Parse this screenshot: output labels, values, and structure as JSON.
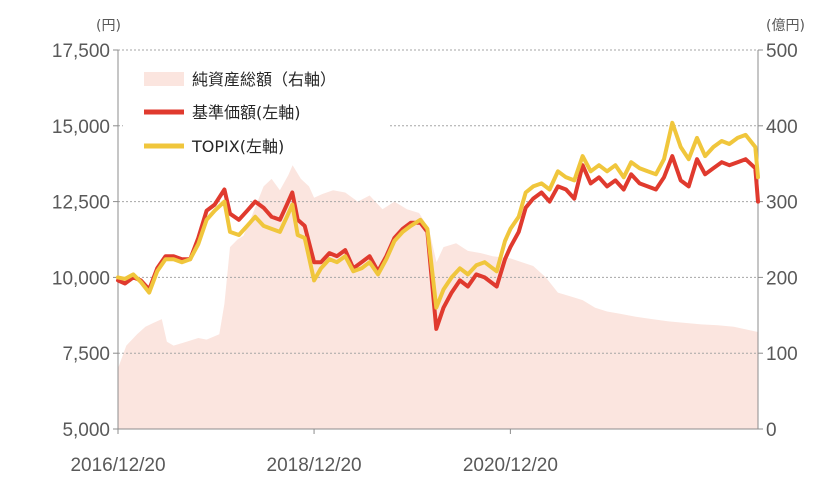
{
  "chart_data": {
    "type": "line",
    "left_axis": {
      "unit_label": "(円)",
      "ylim": [
        5000,
        17500
      ],
      "ticks": [
        5000,
        7500,
        10000,
        12500,
        15000,
        17500
      ],
      "tick_labels": [
        "5,000",
        "7,500",
        "10,000",
        "12,500",
        "15,000",
        "17,500"
      ]
    },
    "right_axis": {
      "unit_label": "(億円)",
      "ylim": [
        0,
        500
      ],
      "ticks": [
        0,
        100,
        200,
        300,
        400,
        500
      ],
      "tick_labels": [
        "0",
        "100",
        "200",
        "300",
        "400",
        "500"
      ]
    },
    "x_axis": {
      "start": "2016-12-20",
      "end": "2023-06-30",
      "tick_labels": [
        "2016/12/20",
        "2018/12/20",
        "2020/12/20"
      ],
      "tick_dates": [
        "2016-12-20",
        "2018-12-20",
        "2020-12-20"
      ]
    },
    "grid": true,
    "legend_position": "top-left",
    "series": [
      {
        "name": "純資産総額（右軸）",
        "type": "area",
        "axis": "right",
        "color": "#fbe5df",
        "points": [
          [
            "2016-12-20",
            80
          ],
          [
            "2017-01-20",
            110
          ],
          [
            "2017-03-01",
            125
          ],
          [
            "2017-04-01",
            135
          ],
          [
            "2017-05-01",
            140
          ],
          [
            "2017-06-01",
            145
          ],
          [
            "2017-06-20",
            115
          ],
          [
            "2017-07-15",
            110
          ],
          [
            "2017-09-01",
            115
          ],
          [
            "2017-10-15",
            120
          ],
          [
            "2017-11-15",
            118
          ],
          [
            "2018-01-01",
            125
          ],
          [
            "2018-01-20",
            165
          ],
          [
            "2018-02-10",
            240
          ],
          [
            "2018-03-10",
            250
          ],
          [
            "2018-04-01",
            255
          ],
          [
            "2018-05-01",
            280
          ],
          [
            "2018-06-15",
            320
          ],
          [
            "2018-07-15",
            330
          ],
          [
            "2018-08-15",
            315
          ],
          [
            "2018-09-15",
            335
          ],
          [
            "2018-10-01",
            348
          ],
          [
            "2018-11-01",
            330
          ],
          [
            "2018-12-01",
            320
          ],
          [
            "2018-12-20",
            305
          ],
          [
            "2019-01-20",
            310
          ],
          [
            "2019-03-01",
            315
          ],
          [
            "2019-04-15",
            312
          ],
          [
            "2019-06-01",
            300
          ],
          [
            "2019-07-15",
            308
          ],
          [
            "2019-09-01",
            290
          ],
          [
            "2019-10-15",
            300
          ],
          [
            "2019-12-01",
            290
          ],
          [
            "2020-01-15",
            285
          ],
          [
            "2020-02-20",
            265
          ],
          [
            "2020-03-20",
            220
          ],
          [
            "2020-04-15",
            240
          ],
          [
            "2020-06-01",
            245
          ],
          [
            "2020-07-15",
            235
          ],
          [
            "2020-09-01",
            232
          ],
          [
            "2020-10-15",
            228
          ],
          [
            "2020-12-20",
            225
          ],
          [
            "2021-02-01",
            220
          ],
          [
            "2021-03-15",
            215
          ],
          [
            "2021-05-01",
            200
          ],
          [
            "2021-06-15",
            180
          ],
          [
            "2021-08-01",
            175
          ],
          [
            "2021-09-15",
            170
          ],
          [
            "2021-11-01",
            160
          ],
          [
            "2021-12-15",
            155
          ],
          [
            "2022-02-01",
            152
          ],
          [
            "2022-04-01",
            148
          ],
          [
            "2022-06-01",
            145
          ],
          [
            "2022-08-01",
            142
          ],
          [
            "2022-10-01",
            140
          ],
          [
            "2022-12-01",
            138
          ],
          [
            "2023-02-01",
            137
          ],
          [
            "2023-04-01",
            135
          ],
          [
            "2023-06-30",
            128
          ]
        ]
      },
      {
        "name": "基準価額(左軸)",
        "type": "line",
        "axis": "left",
        "color": "#e03a2e",
        "points": [
          [
            "2016-12-20",
            9900
          ],
          [
            "2017-01-15",
            9800
          ],
          [
            "2017-02-15",
            10000
          ],
          [
            "2017-03-15",
            9900
          ],
          [
            "2017-04-15",
            9600
          ],
          [
            "2017-05-15",
            10300
          ],
          [
            "2017-06-15",
            10700
          ],
          [
            "2017-07-15",
            10700
          ],
          [
            "2017-08-15",
            10600
          ],
          [
            "2017-09-15",
            10600
          ],
          [
            "2017-10-15",
            11300
          ],
          [
            "2017-11-15",
            12200
          ],
          [
            "2017-12-15",
            12400
          ],
          [
            "2018-01-20",
            12900
          ],
          [
            "2018-02-10",
            12100
          ],
          [
            "2018-03-15",
            11900
          ],
          [
            "2018-04-15",
            12200
          ],
          [
            "2018-05-15",
            12500
          ],
          [
            "2018-06-15",
            12300
          ],
          [
            "2018-07-15",
            12000
          ],
          [
            "2018-08-15",
            11900
          ],
          [
            "2018-09-10",
            12400
          ],
          [
            "2018-09-30",
            12800
          ],
          [
            "2018-10-20",
            11900
          ],
          [
            "2018-11-15",
            11700
          ],
          [
            "2018-12-20",
            10500
          ],
          [
            "2019-01-15",
            10500
          ],
          [
            "2019-02-15",
            10800
          ],
          [
            "2019-03-15",
            10700
          ],
          [
            "2019-04-15",
            10900
          ],
          [
            "2019-05-15",
            10300
          ],
          [
            "2019-06-15",
            10500
          ],
          [
            "2019-07-15",
            10700
          ],
          [
            "2019-08-15",
            10200
          ],
          [
            "2019-09-15",
            10700
          ],
          [
            "2019-10-15",
            11300
          ],
          [
            "2019-11-15",
            11600
          ],
          [
            "2019-12-15",
            11800
          ],
          [
            "2020-01-20",
            11800
          ],
          [
            "2020-02-15",
            11500
          ],
          [
            "2020-03-19",
            8300
          ],
          [
            "2020-04-15",
            9000
          ],
          [
            "2020-05-15",
            9500
          ],
          [
            "2020-06-15",
            9900
          ],
          [
            "2020-07-15",
            9700
          ],
          [
            "2020-08-15",
            10100
          ],
          [
            "2020-09-15",
            10000
          ],
          [
            "2020-10-30",
            9700
          ],
          [
            "2020-11-30",
            10600
          ],
          [
            "2020-12-20",
            11000
          ],
          [
            "2021-01-20",
            11500
          ],
          [
            "2021-02-15",
            12300
          ],
          [
            "2021-03-15",
            12600
          ],
          [
            "2021-04-15",
            12800
          ],
          [
            "2021-05-15",
            12500
          ],
          [
            "2021-06-15",
            13000
          ],
          [
            "2021-07-15",
            12900
          ],
          [
            "2021-08-15",
            12600
          ],
          [
            "2021-09-15",
            13700
          ],
          [
            "2021-10-15",
            13100
          ],
          [
            "2021-11-15",
            13300
          ],
          [
            "2021-12-15",
            13000
          ],
          [
            "2022-01-15",
            13200
          ],
          [
            "2022-02-15",
            12900
          ],
          [
            "2022-03-15",
            13400
          ],
          [
            "2022-04-15",
            13100
          ],
          [
            "2022-05-15",
            13000
          ],
          [
            "2022-06-15",
            12900
          ],
          [
            "2022-07-15",
            13300
          ],
          [
            "2022-08-15",
            14000
          ],
          [
            "2022-09-15",
            13200
          ],
          [
            "2022-10-15",
            13000
          ],
          [
            "2022-11-15",
            13900
          ],
          [
            "2022-12-15",
            13400
          ],
          [
            "2023-01-15",
            13600
          ],
          [
            "2023-02-15",
            13800
          ],
          [
            "2023-03-15",
            13700
          ],
          [
            "2023-04-15",
            13800
          ],
          [
            "2023-05-15",
            13900
          ],
          [
            "2023-06-20",
            13600
          ],
          [
            "2023-06-30",
            12500
          ]
        ]
      },
      {
        "name": "TOPIX(左軸)",
        "type": "line",
        "axis": "left",
        "color": "#f0c63c",
        "points": [
          [
            "2016-12-20",
            10000
          ],
          [
            "2017-01-15",
            9950
          ],
          [
            "2017-02-15",
            10100
          ],
          [
            "2017-03-15",
            9850
          ],
          [
            "2017-04-15",
            9500
          ],
          [
            "2017-05-15",
            10200
          ],
          [
            "2017-06-15",
            10600
          ],
          [
            "2017-07-15",
            10600
          ],
          [
            "2017-08-15",
            10500
          ],
          [
            "2017-09-15",
            10600
          ],
          [
            "2017-10-15",
            11100
          ],
          [
            "2017-11-15",
            11900
          ],
          [
            "2017-12-15",
            12200
          ],
          [
            "2018-01-20",
            12500
          ],
          [
            "2018-02-10",
            11500
          ],
          [
            "2018-03-15",
            11400
          ],
          [
            "2018-04-15",
            11700
          ],
          [
            "2018-05-15",
            12000
          ],
          [
            "2018-06-15",
            11700
          ],
          [
            "2018-07-15",
            11600
          ],
          [
            "2018-08-15",
            11500
          ],
          [
            "2018-09-10",
            12000
          ],
          [
            "2018-09-30",
            12400
          ],
          [
            "2018-10-20",
            11400
          ],
          [
            "2018-11-15",
            11300
          ],
          [
            "2018-12-20",
            9900
          ],
          [
            "2019-01-15",
            10300
          ],
          [
            "2019-02-15",
            10600
          ],
          [
            "2019-03-15",
            10500
          ],
          [
            "2019-04-15",
            10700
          ],
          [
            "2019-05-15",
            10200
          ],
          [
            "2019-06-15",
            10300
          ],
          [
            "2019-07-15",
            10500
          ],
          [
            "2019-08-15",
            10100
          ],
          [
            "2019-09-15",
            10600
          ],
          [
            "2019-10-15",
            11200
          ],
          [
            "2019-11-15",
            11500
          ],
          [
            "2019-12-15",
            11700
          ],
          [
            "2020-01-20",
            11900
          ],
          [
            "2020-02-15",
            11600
          ],
          [
            "2020-03-19",
            9000
          ],
          [
            "2020-04-15",
            9600
          ],
          [
            "2020-05-15",
            10000
          ],
          [
            "2020-06-15",
            10300
          ],
          [
            "2020-07-15",
            10100
          ],
          [
            "2020-08-15",
            10400
          ],
          [
            "2020-09-15",
            10500
          ],
          [
            "2020-10-30",
            10200
          ],
          [
            "2020-11-30",
            11200
          ],
          [
            "2020-12-20",
            11600
          ],
          [
            "2021-01-20",
            12000
          ],
          [
            "2021-02-15",
            12800
          ],
          [
            "2021-03-15",
            13000
          ],
          [
            "2021-04-15",
            13100
          ],
          [
            "2021-05-15",
            12900
          ],
          [
            "2021-06-15",
            13500
          ],
          [
            "2021-07-15",
            13300
          ],
          [
            "2021-08-15",
            13200
          ],
          [
            "2021-09-15",
            14000
          ],
          [
            "2021-10-15",
            13500
          ],
          [
            "2021-11-15",
            13700
          ],
          [
            "2021-12-15",
            13500
          ],
          [
            "2022-01-15",
            13700
          ],
          [
            "2022-02-15",
            13300
          ],
          [
            "2022-03-15",
            13800
          ],
          [
            "2022-04-15",
            13600
          ],
          [
            "2022-05-15",
            13500
          ],
          [
            "2022-06-15",
            13400
          ],
          [
            "2022-07-15",
            13900
          ],
          [
            "2022-08-15",
            15100
          ],
          [
            "2022-09-15",
            14300
          ],
          [
            "2022-10-15",
            13900
          ],
          [
            "2022-11-15",
            14600
          ],
          [
            "2022-12-15",
            14000
          ],
          [
            "2023-01-15",
            14300
          ],
          [
            "2023-02-15",
            14500
          ],
          [
            "2023-03-15",
            14400
          ],
          [
            "2023-04-15",
            14600
          ],
          [
            "2023-05-15",
            14700
          ],
          [
            "2023-06-20",
            14300
          ],
          [
            "2023-06-30",
            13300
          ]
        ]
      }
    ]
  }
}
